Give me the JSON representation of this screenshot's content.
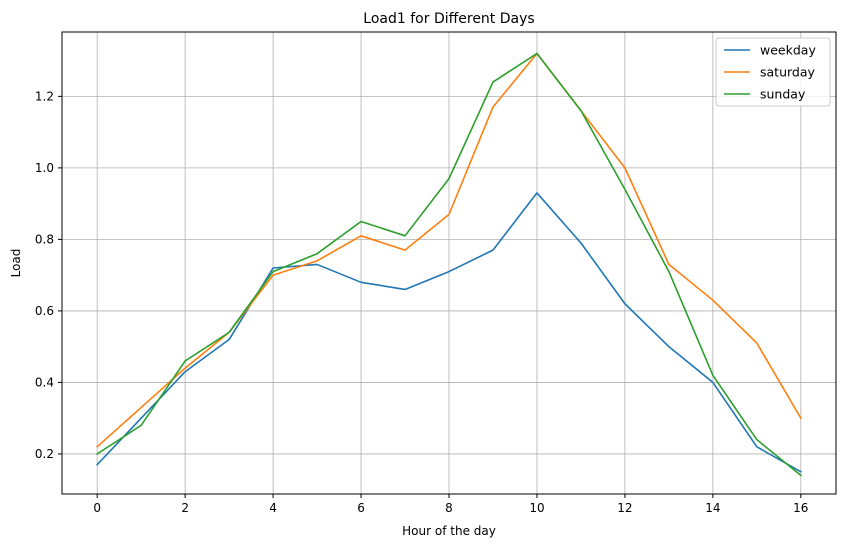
{
  "chart_data": {
    "type": "line",
    "title": "Load1 for Different Days",
    "xlabel": "Hour of the day",
    "ylabel": "Load",
    "x": [
      0,
      1,
      2,
      3,
      4,
      5,
      6,
      7,
      8,
      9,
      10,
      11,
      12,
      13,
      14,
      15,
      16
    ],
    "xlim": [
      -0.8,
      16.8
    ],
    "ylim": [
      0.088,
      1.38
    ],
    "xticks": [
      0,
      2,
      4,
      6,
      8,
      10,
      12,
      14,
      16
    ],
    "xtick_labels": [
      "0",
      "2",
      "4",
      "6",
      "8",
      "10",
      "12",
      "14",
      "16"
    ],
    "yticks": [
      0.2,
      0.4,
      0.6,
      0.8,
      1.0,
      1.2
    ],
    "ytick_labels": [
      "0.2",
      "0.4",
      "0.6",
      "0.8",
      "1.0",
      "1.2"
    ],
    "grid": true,
    "legend_position": "top-right",
    "series": [
      {
        "name": "weekday",
        "color": "#1f77b4",
        "values": [
          0.17,
          0.3,
          0.43,
          0.52,
          0.72,
          0.73,
          0.68,
          0.66,
          0.71,
          0.77,
          0.93,
          0.79,
          0.62,
          0.5,
          0.4,
          0.22,
          0.15
        ]
      },
      {
        "name": "saturday",
        "color": "#ff7f0e",
        "values": [
          0.22,
          0.33,
          0.44,
          0.54,
          0.7,
          0.74,
          0.81,
          0.77,
          0.87,
          1.17,
          1.32,
          1.16,
          1.0,
          0.73,
          0.63,
          0.51,
          0.3
        ]
      },
      {
        "name": "sunday",
        "color": "#2ca02c",
        "values": [
          0.2,
          0.28,
          0.46,
          0.54,
          0.71,
          0.76,
          0.85,
          0.81,
          0.97,
          1.24,
          1.32,
          1.16,
          0.94,
          0.71,
          0.42,
          0.24,
          0.14
        ]
      }
    ]
  }
}
